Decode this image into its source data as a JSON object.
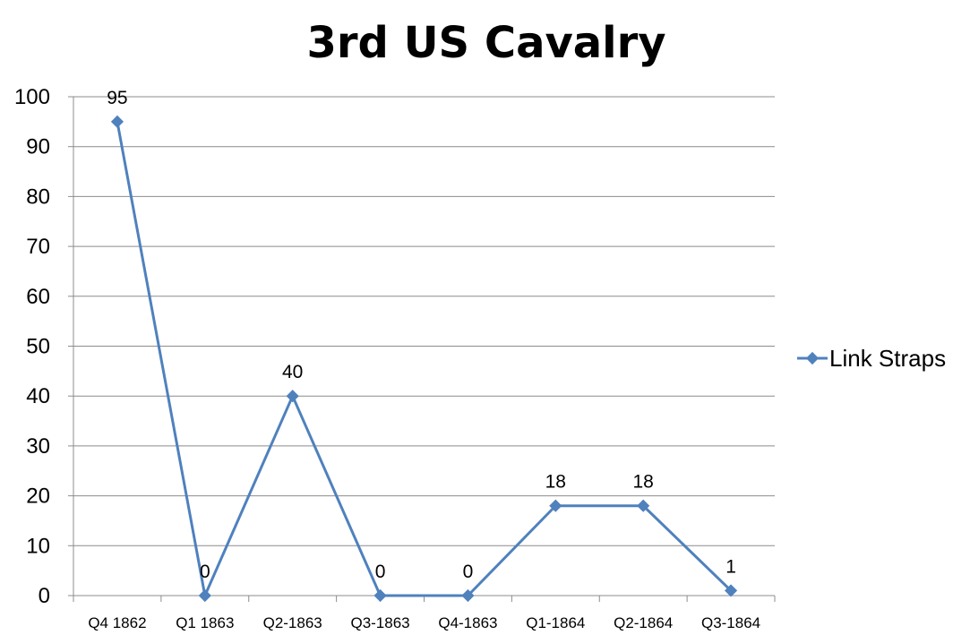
{
  "chart_data": {
    "type": "line",
    "title": "3rd US Cavalry",
    "xlabel": "",
    "ylabel": "",
    "categories": [
      "Q4 1862",
      "Q1 1863",
      "Q2-1863",
      "Q3-1863",
      "Q4-1863",
      "Q1-1864",
      "Q2-1864",
      "Q3-1864"
    ],
    "series": [
      {
        "name": "Link Straps",
        "values": [
          95,
          0,
          40,
          0,
          0,
          18,
          18,
          1
        ]
      }
    ],
    "ylim": [
      0,
      100
    ],
    "yticks": [
      0,
      10,
      20,
      30,
      40,
      50,
      60,
      70,
      80,
      90,
      100
    ],
    "grid": true,
    "legend": "right",
    "data_labels": true,
    "colors": {
      "series": "#4f81bd",
      "grid": "#8c8c8c",
      "axis": "#8c8c8c"
    }
  }
}
